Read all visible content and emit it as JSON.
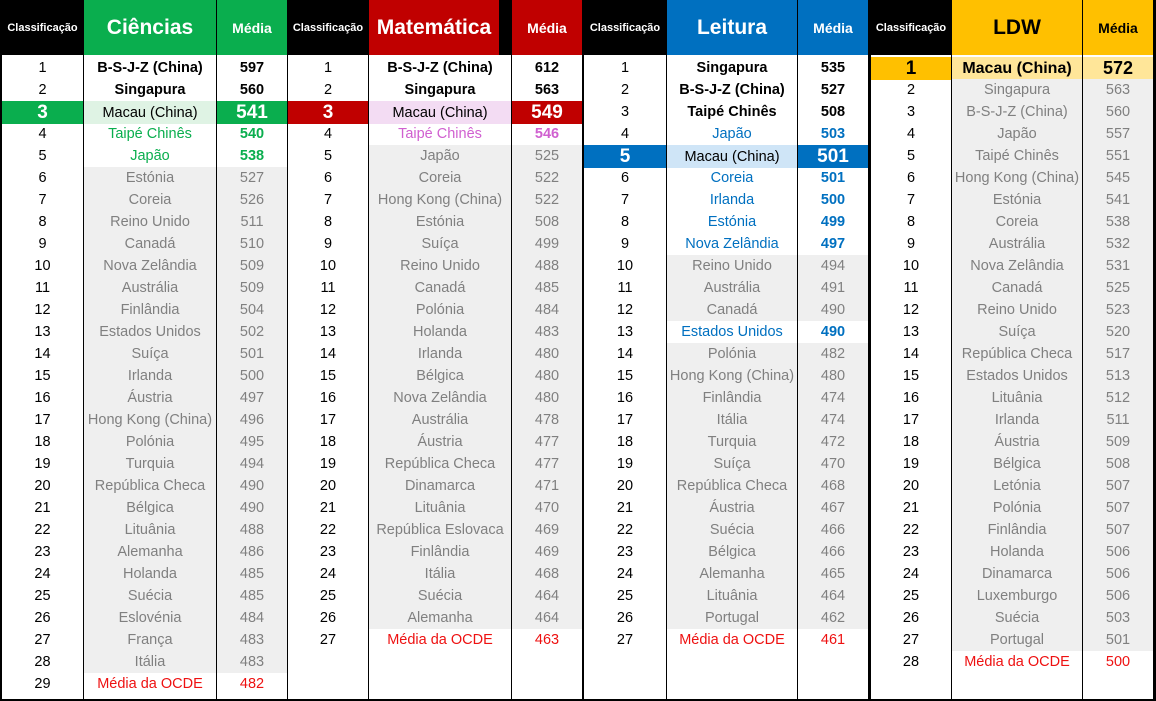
{
  "headers": {
    "classificacao": "Classificação",
    "media": "Média"
  },
  "colors": {
    "ciencias": "#0aae4e",
    "matematica": "#c00000",
    "leitura": "#0070c0",
    "ldw": "#ffc000",
    "cien_hl_name": "#dff3e4",
    "mat_hl_name": "#f3dcf3",
    "mat_text": "#d060d0",
    "leit_hl_name": "#cfe5f7",
    "ldw_hl_rank": "#ffc000",
    "ldw_hl_name": "#ffe699"
  },
  "panels": [
    {
      "key": "ciencias",
      "title": "Ciências",
      "rows": [
        {
          "rank": "1",
          "country": "B-S-J-Z (China)",
          "score": "597"
        },
        {
          "rank": "2",
          "country": "Singapura",
          "score": "560"
        },
        {
          "rank": "3",
          "country": "Macau (China)",
          "score": "541"
        },
        {
          "rank": "4",
          "country": "Taipé Chinês",
          "score": "540"
        },
        {
          "rank": "5",
          "country": "Japão",
          "score": "538"
        },
        {
          "rank": "6",
          "country": "Estónia",
          "score": "527"
        },
        {
          "rank": "7",
          "country": "Coreia",
          "score": "526"
        },
        {
          "rank": "8",
          "country": "Reino Unido",
          "score": "511"
        },
        {
          "rank": "9",
          "country": "Canadá",
          "score": "510"
        },
        {
          "rank": "10",
          "country": "Nova Zelândia",
          "score": "509"
        },
        {
          "rank": "11",
          "country": "Austrália",
          "score": "509"
        },
        {
          "rank": "12",
          "country": "Finlândia",
          "score": "504"
        },
        {
          "rank": "13",
          "country": "Estados Unidos",
          "score": "502"
        },
        {
          "rank": "14",
          "country": "Suíça",
          "score": "501"
        },
        {
          "rank": "15",
          "country": "Irlanda",
          "score": "500"
        },
        {
          "rank": "16",
          "country": "Áustria",
          "score": "497"
        },
        {
          "rank": "17",
          "country": "Hong Kong (China)",
          "score": "496"
        },
        {
          "rank": "18",
          "country": "Polónia",
          "score": "495"
        },
        {
          "rank": "19",
          "country": "Turquia",
          "score": "494"
        },
        {
          "rank": "20",
          "country": "República Checa",
          "score": "490"
        },
        {
          "rank": "21",
          "country": "Bélgica",
          "score": "490"
        },
        {
          "rank": "22",
          "country": "Lituânia",
          "score": "488"
        },
        {
          "rank": "23",
          "country": "Alemanha",
          "score": "486"
        },
        {
          "rank": "24",
          "country": "Holanda",
          "score": "485"
        },
        {
          "rank": "25",
          "country": "Suécia",
          "score": "485"
        },
        {
          "rank": "26",
          "country": "Eslovénia",
          "score": "484"
        },
        {
          "rank": "27",
          "country": "França",
          "score": "483"
        },
        {
          "rank": "28",
          "country": "Itália",
          "score": "483"
        },
        {
          "rank": "29",
          "country": "Média da OCDE",
          "score": "482"
        }
      ]
    },
    {
      "key": "matematica",
      "title": "Matemática",
      "rows": [
        {
          "rank": "1",
          "country": "B-S-J-Z (China)",
          "score": "612"
        },
        {
          "rank": "2",
          "country": "Singapura",
          "score": "563"
        },
        {
          "rank": "3",
          "country": "Macau (China)",
          "score": "549"
        },
        {
          "rank": "4",
          "country": "Taipé Chinês",
          "score": "546"
        },
        {
          "rank": "5",
          "country": "Japão",
          "score": "525"
        },
        {
          "rank": "6",
          "country": "Coreia",
          "score": "522"
        },
        {
          "rank": "7",
          "country": "Hong Kong (China)",
          "score": "522"
        },
        {
          "rank": "8",
          "country": "Estónia",
          "score": "508"
        },
        {
          "rank": "9",
          "country": "Suíça",
          "score": "499"
        },
        {
          "rank": "10",
          "country": "Reino Unido",
          "score": "488"
        },
        {
          "rank": "11",
          "country": "Canadá",
          "score": "485"
        },
        {
          "rank": "12",
          "country": "Polónia",
          "score": "484"
        },
        {
          "rank": "13",
          "country": "Holanda",
          "score": "483"
        },
        {
          "rank": "14",
          "country": "Irlanda",
          "score": "480"
        },
        {
          "rank": "15",
          "country": "Bélgica",
          "score": "480"
        },
        {
          "rank": "16",
          "country": "Nova Zelândia",
          "score": "480"
        },
        {
          "rank": "17",
          "country": "Austrália",
          "score": "478"
        },
        {
          "rank": "18",
          "country": "Áustria",
          "score": "477"
        },
        {
          "rank": "19",
          "country": "República Checa",
          "score": "477"
        },
        {
          "rank": "20",
          "country": "Dinamarca",
          "score": "471"
        },
        {
          "rank": "21",
          "country": "Lituânia",
          "score": "470"
        },
        {
          "rank": "22",
          "country": "República Eslovaca",
          "score": "469"
        },
        {
          "rank": "23",
          "country": "Finlândia",
          "score": "469"
        },
        {
          "rank": "24",
          "country": "Itália",
          "score": "468"
        },
        {
          "rank": "25",
          "country": "Suécia",
          "score": "464"
        },
        {
          "rank": "26",
          "country": "Alemanha",
          "score": "464"
        },
        {
          "rank": "27",
          "country": "Média da OCDE",
          "score": "463"
        }
      ]
    },
    {
      "key": "leitura",
      "title": "Leitura",
      "rows": [
        {
          "rank": "1",
          "country": "Singapura",
          "score": "535"
        },
        {
          "rank": "2",
          "country": "B-S-J-Z (China)",
          "score": "527"
        },
        {
          "rank": "3",
          "country": "Taipé Chinês",
          "score": "508"
        },
        {
          "rank": "4",
          "country": "Japão",
          "score": "503"
        },
        {
          "rank": "5",
          "country": "Macau (China)",
          "score": "501"
        },
        {
          "rank": "6",
          "country": "Coreia",
          "score": "501"
        },
        {
          "rank": "7",
          "country": "Irlanda",
          "score": "500"
        },
        {
          "rank": "8",
          "country": "Estónia",
          "score": "499"
        },
        {
          "rank": "9",
          "country": "Nova Zelândia",
          "score": "497"
        },
        {
          "rank": "10",
          "country": "Reino Unido",
          "score": "494"
        },
        {
          "rank": "11",
          "country": "Austrália",
          "score": "491"
        },
        {
          "rank": "12",
          "country": "Canadá",
          "score": "490"
        },
        {
          "rank": "13",
          "country": "Estados Unidos",
          "score": "490"
        },
        {
          "rank": "14",
          "country": "Polónia",
          "score": "482"
        },
        {
          "rank": "15",
          "country": "Hong Kong (China)",
          "score": "480"
        },
        {
          "rank": "16",
          "country": "Finlândia",
          "score": "474"
        },
        {
          "rank": "17",
          "country": "Itália",
          "score": "474"
        },
        {
          "rank": "18",
          "country": "Turquia",
          "score": "472"
        },
        {
          "rank": "19",
          "country": "Suíça",
          "score": "470"
        },
        {
          "rank": "20",
          "country": "República Checa",
          "score": "468"
        },
        {
          "rank": "21",
          "country": "Áustria",
          "score": "467"
        },
        {
          "rank": "22",
          "country": "Suécia",
          "score": "466"
        },
        {
          "rank": "23",
          "country": "Bélgica",
          "score": "466"
        },
        {
          "rank": "24",
          "country": "Alemanha",
          "score": "465"
        },
        {
          "rank": "25",
          "country": "Lituânia",
          "score": "464"
        },
        {
          "rank": "26",
          "country": "Portugal",
          "score": "462"
        },
        {
          "rank": "27",
          "country": "Média da OCDE",
          "score": "461"
        }
      ]
    },
    {
      "key": "ldw",
      "title": "LDW",
      "rows": [
        {
          "rank": "1",
          "country": "Macau (China)",
          "score": "572"
        },
        {
          "rank": "2",
          "country": "Singapura",
          "score": "563"
        },
        {
          "rank": "3",
          "country": "B-S-J-Z (China)",
          "score": "560"
        },
        {
          "rank": "4",
          "country": "Japão",
          "score": "557"
        },
        {
          "rank": "5",
          "country": "Taipé Chinês",
          "score": "551"
        },
        {
          "rank": "6",
          "country": "Hong Kong (China)",
          "score": "545"
        },
        {
          "rank": "7",
          "country": "Estónia",
          "score": "541"
        },
        {
          "rank": "8",
          "country": "Coreia",
          "score": "538"
        },
        {
          "rank": "9",
          "country": "Austrália",
          "score": "532"
        },
        {
          "rank": "10",
          "country": "Nova Zelândia",
          "score": "531"
        },
        {
          "rank": "11",
          "country": "Canadá",
          "score": "525"
        },
        {
          "rank": "12",
          "country": "Reino Unido",
          "score": "523"
        },
        {
          "rank": "13",
          "country": "Suíça",
          "score": "520"
        },
        {
          "rank": "14",
          "country": "República Checa",
          "score": "517"
        },
        {
          "rank": "15",
          "country": "Estados Unidos",
          "score": "513"
        },
        {
          "rank": "16",
          "country": "Lituânia",
          "score": "512"
        },
        {
          "rank": "17",
          "country": "Irlanda",
          "score": "511"
        },
        {
          "rank": "18",
          "country": "Áustria",
          "score": "509"
        },
        {
          "rank": "19",
          "country": "Bélgica",
          "score": "508"
        },
        {
          "rank": "20",
          "country": "Letónia",
          "score": "507"
        },
        {
          "rank": "21",
          "country": "Polónia",
          "score": "507"
        },
        {
          "rank": "22",
          "country": "Finlândia",
          "score": "507"
        },
        {
          "rank": "23",
          "country": "Holanda",
          "score": "506"
        },
        {
          "rank": "24",
          "country": "Dinamarca",
          "score": "506"
        },
        {
          "rank": "25",
          "country": "Luxemburgo",
          "score": "506"
        },
        {
          "rank": "26",
          "country": "Suécia",
          "score": "503"
        },
        {
          "rank": "27",
          "country": "Portugal",
          "score": "501"
        },
        {
          "rank": "28",
          "country": "Média da OCDE",
          "score": "500"
        }
      ]
    }
  ]
}
